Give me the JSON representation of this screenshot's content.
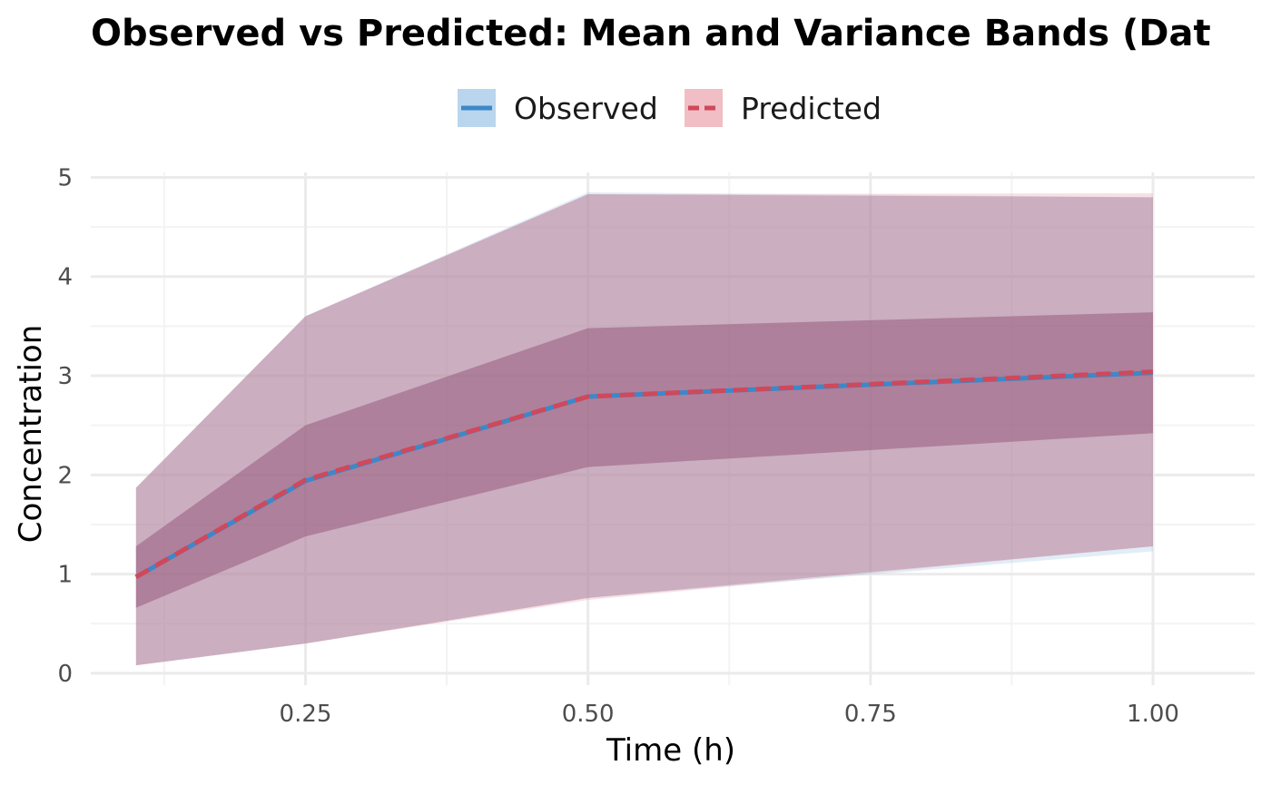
{
  "chart_data": {
    "type": "line",
    "title": "Observed vs Predicted: Mean and Variance Bands (Dat",
    "xlabel": "Time (h)",
    "ylabel": "Concentration",
    "xlim": [
      0.06,
      1.09
    ],
    "ylim": [
      -0.12,
      5.05
    ],
    "x_ticks": [
      0.25,
      0.5,
      0.75,
      1.0
    ],
    "x_tick_labels": [
      "0.25",
      "0.50",
      "0.75",
      "1.00"
    ],
    "y_ticks": [
      0,
      1,
      2,
      3,
      4,
      5
    ],
    "y_tick_labels": [
      "0",
      "1",
      "2",
      "3",
      "4",
      "5"
    ],
    "grid": true,
    "legend": {
      "position": "top",
      "entries": [
        "Observed",
        "Predicted"
      ]
    },
    "x": [
      0.1,
      0.25,
      0.5,
      1.0
    ],
    "series": [
      {
        "name": "Observed",
        "color": "#3d88c8",
        "band_color": "#a8cbe8",
        "line_style": "solid",
        "mean": [
          0.97,
          1.94,
          2.79,
          3.03
        ],
        "inner_lower": [
          0.66,
          1.38,
          2.08,
          2.42
        ],
        "inner_upper": [
          1.28,
          2.5,
          3.5,
          3.64
        ],
        "outer_lower": [
          0.08,
          0.3,
          0.76,
          1.23
        ],
        "outer_upper": [
          1.87,
          3.6,
          4.85,
          4.8
        ]
      },
      {
        "name": "Predicted",
        "color": "#d0485b",
        "band_color": "#e8a8b1",
        "line_style": "dashed",
        "mean": [
          0.97,
          1.95,
          2.79,
          3.04
        ],
        "inner_lower": [
          0.66,
          1.38,
          2.08,
          2.42
        ],
        "inner_upper": [
          1.28,
          2.51,
          3.48,
          3.66
        ],
        "outer_lower": [
          0.08,
          0.3,
          0.74,
          1.28
        ],
        "outer_upper": [
          1.87,
          3.6,
          4.83,
          4.84
        ]
      }
    ]
  },
  "colors": {
    "overlap_fill": "#8b4a6e",
    "grid_major": "#ebebeb",
    "grid_minor": "#f3f3f3"
  }
}
